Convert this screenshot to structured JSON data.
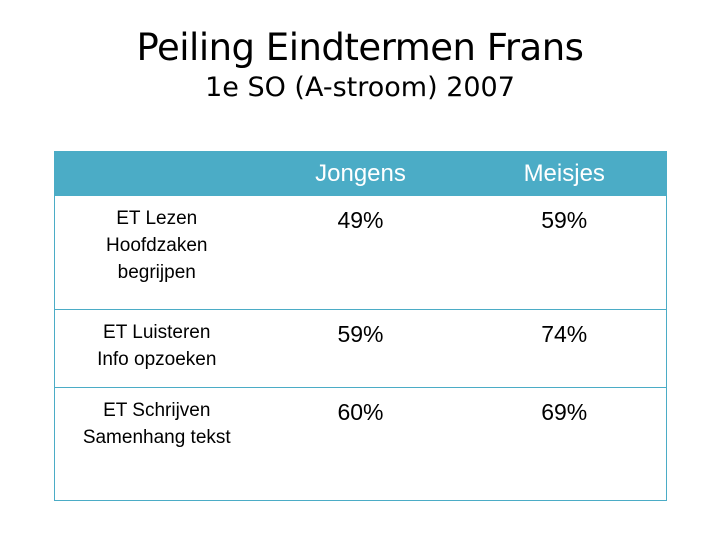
{
  "slide": {
    "title": "Peiling Eindtermen Frans",
    "subtitle": "1e SO (A-stroom) 2007"
  },
  "table": {
    "header": [
      "",
      "Jongens",
      "Meisjes"
    ],
    "rows": [
      {
        "label_lines": [
          "ET Lezen",
          "Hoofdzaken",
          "begrijpen"
        ],
        "jongens": "49%",
        "meisjes": "59%"
      },
      {
        "label_lines": [
          "ET Luisteren",
          "Info opzoeken"
        ],
        "jongens": "59%",
        "meisjes": "74%"
      },
      {
        "label_lines": [
          "ET Schrijven",
          "Samenhang tekst"
        ],
        "jongens": "60%",
        "meisjes": "69%"
      }
    ]
  },
  "colors": {
    "header_background": "#4bacc6",
    "header_text": "#ffffff",
    "border": "#4bacc6"
  }
}
